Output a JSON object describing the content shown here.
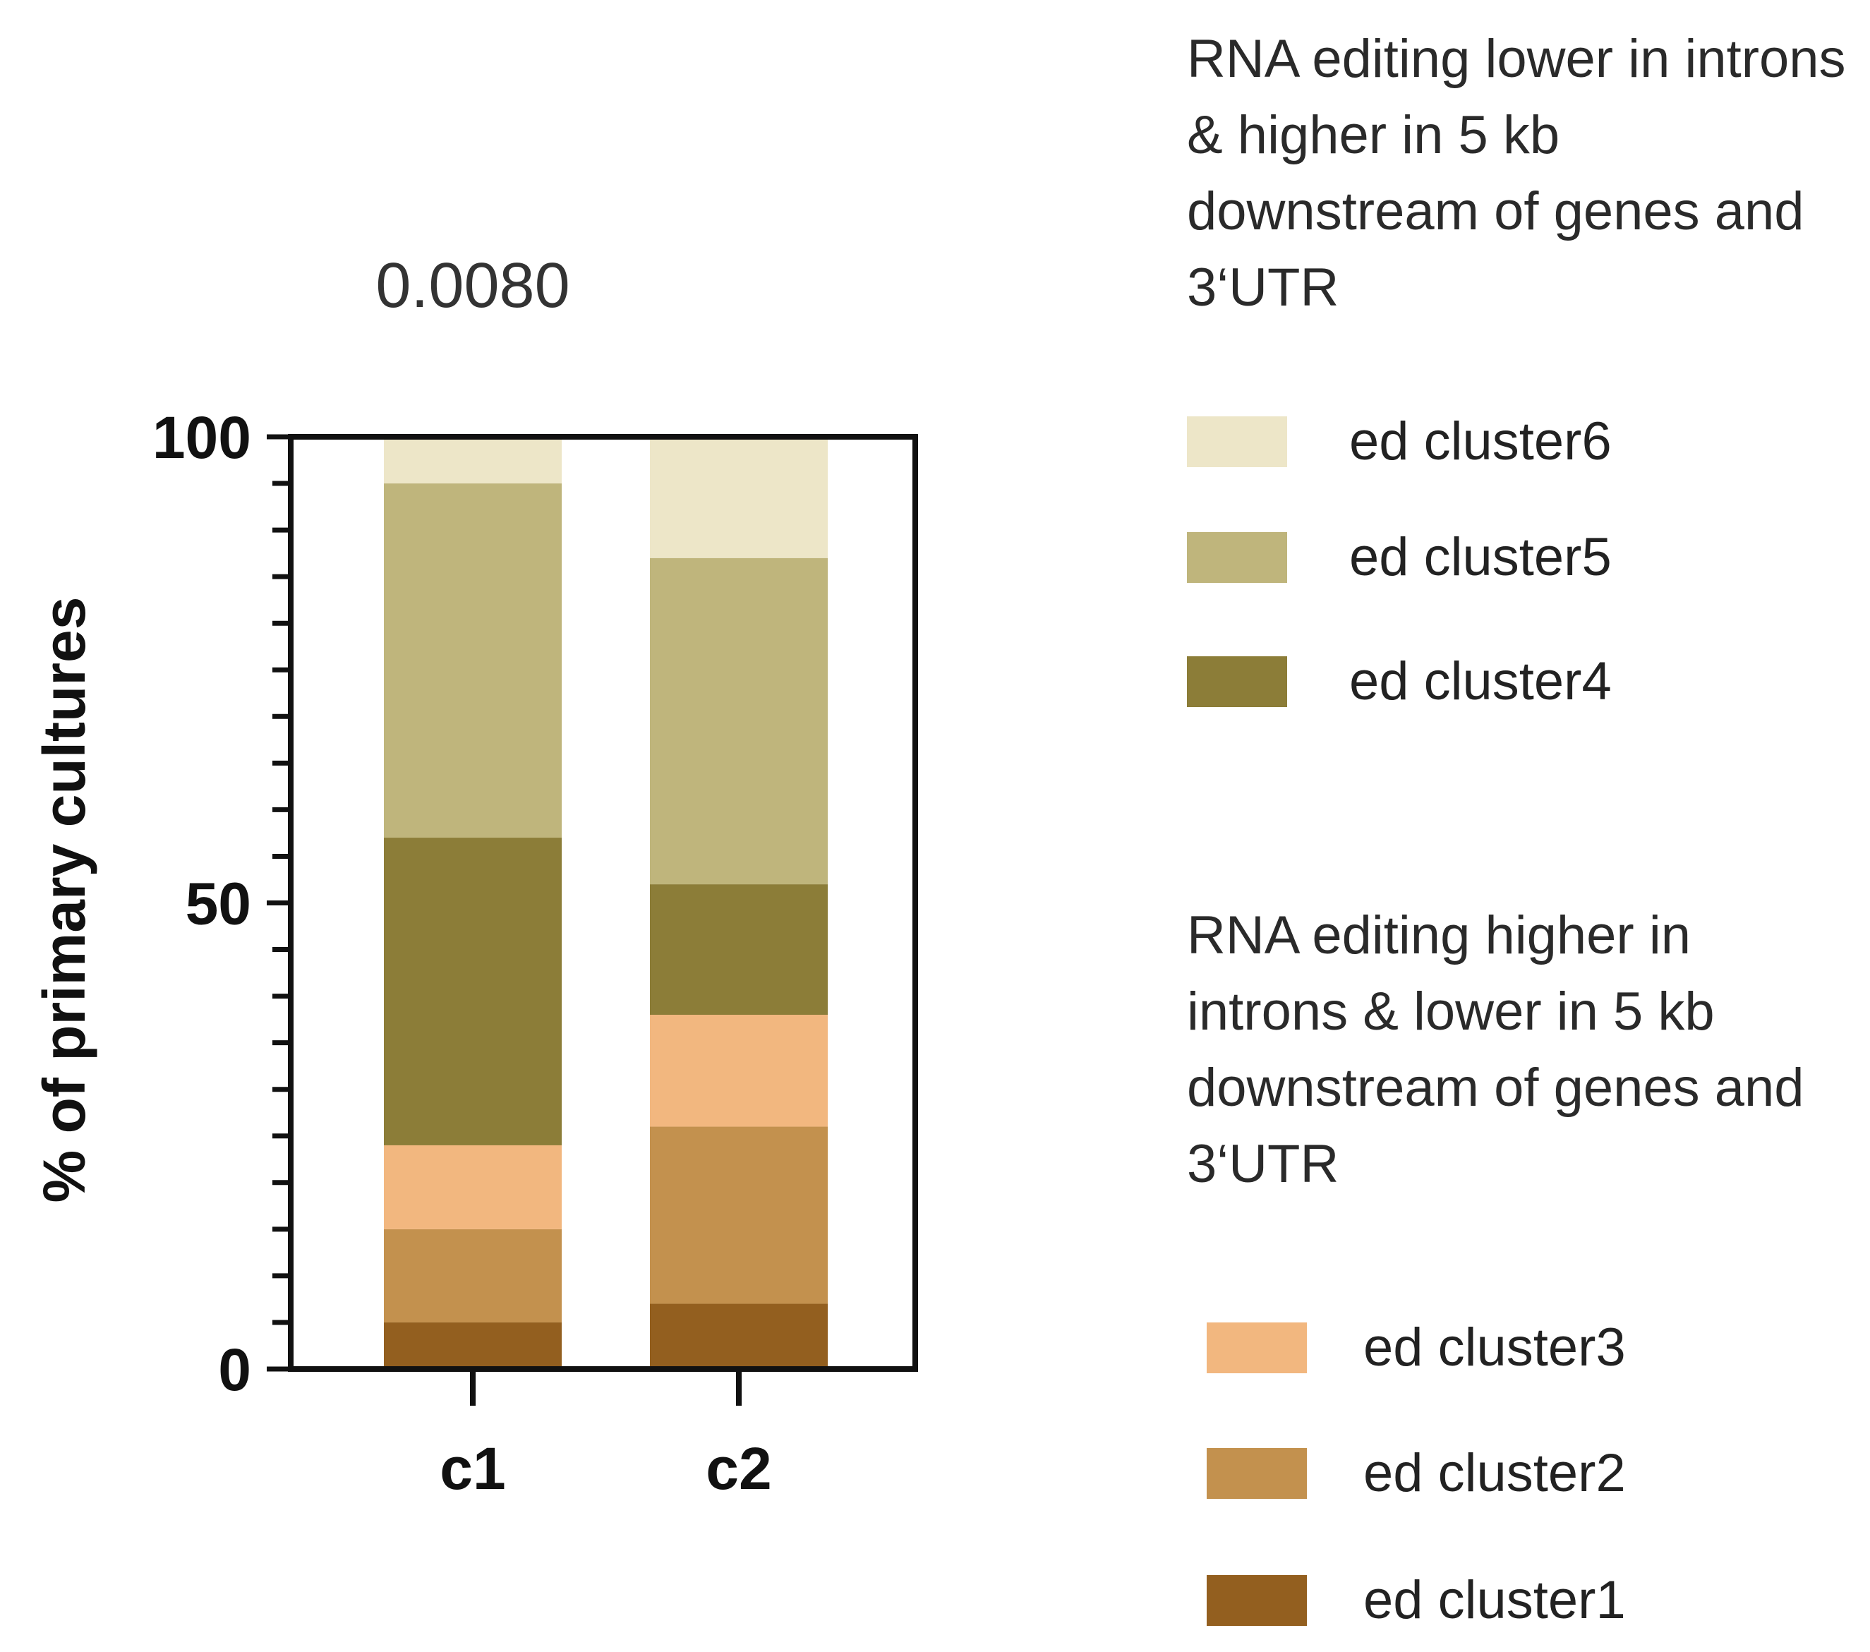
{
  "chart_data": {
    "type": "bar",
    "stacked": true,
    "title": "0.0080",
    "ylabel": "% of primary cultures",
    "xlabel": "",
    "ylim": [
      0,
      100
    ],
    "yticks": [
      0,
      50,
      100
    ],
    "yticks_minor_step": 5,
    "categories": [
      "c1",
      "c2"
    ],
    "series": [
      {
        "name": "ed cluster1",
        "color": "#935f1f",
        "values": [
          5,
          7
        ]
      },
      {
        "name": "ed cluster2",
        "color": "#c3914e",
        "values": [
          10,
          19
        ]
      },
      {
        "name": "ed cluster3",
        "color": "#f2b77f",
        "values": [
          9,
          12
        ]
      },
      {
        "name": "ed cluster4",
        "color": "#8c7d38",
        "values": [
          33,
          14
        ]
      },
      {
        "name": "ed cluster5",
        "color": "#bfb57c",
        "values": [
          38,
          35
        ]
      },
      {
        "name": "ed cluster6",
        "color": "#ede6c8",
        "values": [
          5,
          13
        ]
      }
    ],
    "legend": {
      "placement": "right",
      "groups": [
        {
          "title": "RNA editing lower in introns & higher in 5 kb downstream of genes and 3‘UTR",
          "items": [
            "ed cluster6",
            "ed cluster5",
            "ed cluster4"
          ]
        },
        {
          "title": "RNA editing higher in introns & lower in 5 kb downstream of genes and 3‘UTR",
          "items": [
            "ed cluster3",
            "ed cluster2",
            "ed cluster1"
          ]
        }
      ]
    }
  }
}
